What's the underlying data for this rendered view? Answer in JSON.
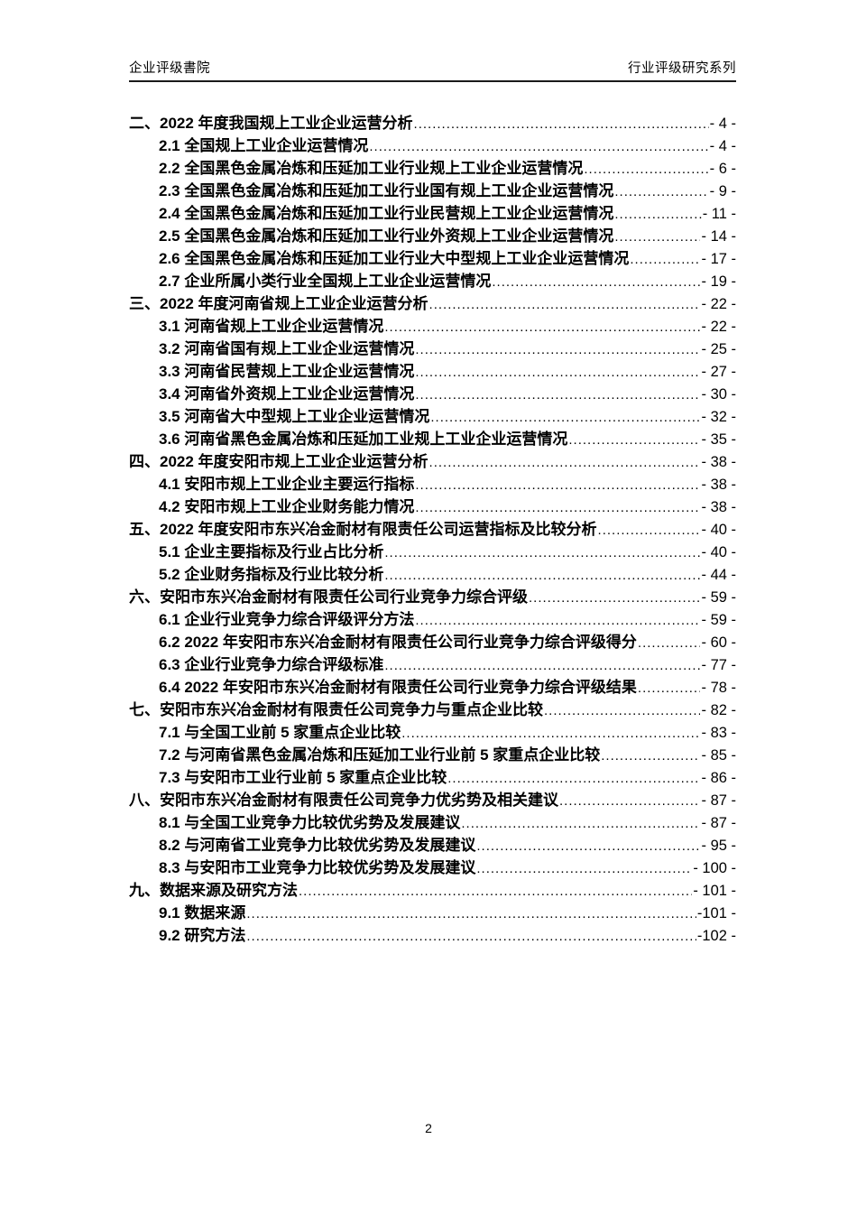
{
  "header": {
    "left": "企业评级書院",
    "right": "行业评级研究系列"
  },
  "toc": {
    "entries": [
      {
        "level": 1,
        "label": "二、2022 年度我国规上工业企业运营分析",
        "page": "- 4 -"
      },
      {
        "level": 2,
        "label": "2.1 全国规上工业企业运营情况",
        "page": "- 4 -"
      },
      {
        "level": 2,
        "label": "2.2 全国黑色金属冶炼和压延加工业行业规上工业企业运营情况",
        "page": "- 6 -"
      },
      {
        "level": 2,
        "label": "2.3 全国黑色金属冶炼和压延加工业行业国有规上工业企业运营情况",
        "page": "- 9 -"
      },
      {
        "level": 2,
        "label": "2.4 全国黑色金属冶炼和压延加工业行业民营规上工业企业运营情况",
        "page": "- 11 -"
      },
      {
        "level": 2,
        "label": "2.5 全国黑色金属冶炼和压延加工业行业外资规上工业企业运营情况",
        "page": "- 14 -"
      },
      {
        "level": 2,
        "label": "2.6 全国黑色金属冶炼和压延加工业行业大中型规上工业企业运营情况",
        "page": "- 17 -"
      },
      {
        "level": 2,
        "label": "2.7 企业所属小类行业全国规上工业企业运营情况",
        "page": "- 19 -"
      },
      {
        "level": 1,
        "label": "三、2022 年度河南省规上工业企业运营分析",
        "page": "- 22 -"
      },
      {
        "level": 2,
        "label": "3.1 河南省规上工业企业运营情况",
        "page": "- 22 -"
      },
      {
        "level": 2,
        "label": "3.2 河南省国有规上工业企业运营情况",
        "page": "- 25 -"
      },
      {
        "level": 2,
        "label": "3.3 河南省民营规上工业企业运营情况",
        "page": "- 27 -"
      },
      {
        "level": 2,
        "label": "3.4 河南省外资规上工业企业运营情况",
        "page": "- 30 -"
      },
      {
        "level": 2,
        "label": "3.5 河南省大中型规上工业企业运营情况",
        "page": "- 32 -"
      },
      {
        "level": 2,
        "label": "3.6 河南省黑色金属冶炼和压延加工业规上工业企业运营情况",
        "page": "- 35 -"
      },
      {
        "level": 1,
        "label": "四、2022 年度安阳市规上工业企业运营分析",
        "page": "- 38 -"
      },
      {
        "level": 2,
        "label": "4.1 安阳市规上工业企业主要运行指标",
        "page": "- 38 -"
      },
      {
        "level": 2,
        "label": "4.2 安阳市规上工业企业财务能力情况",
        "page": "- 38 -"
      },
      {
        "level": 1,
        "label": "五、2022 年度安阳市东兴冶金耐材有限责任公司运营指标及比较分析",
        "page": "- 40 -"
      },
      {
        "level": 2,
        "label": "5.1 企业主要指标及行业占比分析",
        "page": "- 40 -"
      },
      {
        "level": 2,
        "label": "5.2 企业财务指标及行业比较分析",
        "page": "- 44 -"
      },
      {
        "level": 1,
        "label": "六、安阳市东兴冶金耐材有限责任公司行业竞争力综合评级",
        "page": "- 59 -"
      },
      {
        "level": 2,
        "label": "6.1 企业行业竞争力综合评级评分方法",
        "page": "- 59 -"
      },
      {
        "level": 2,
        "label": "6.2 2022 年安阳市东兴冶金耐材有限责任公司行业竞争力综合评级得分",
        "page": "- 60 -"
      },
      {
        "level": 2,
        "label": "6.3 企业行业竞争力综合评级标准",
        "page": "- 77 -"
      },
      {
        "level": 2,
        "label": "6.4 2022 年安阳市东兴冶金耐材有限责任公司行业竞争力综合评级结果",
        "page": "- 78 -"
      },
      {
        "level": 1,
        "label": "七、安阳市东兴冶金耐材有限责任公司竞争力与重点企业比较",
        "page": "- 82 -"
      },
      {
        "level": 2,
        "label": "7.1 与全国工业前 5 家重点企业比较",
        "page": "- 83 -"
      },
      {
        "level": 2,
        "label": "7.2 与河南省黑色金属冶炼和压延加工业行业前 5 家重点企业比较",
        "page": "- 85 -"
      },
      {
        "level": 2,
        "label": "7.3 与安阳市工业行业前 5 家重点企业比较",
        "page": "- 86 -"
      },
      {
        "level": 1,
        "label": "八、安阳市东兴冶金耐材有限责任公司竞争力优劣势及相关建议",
        "page": "- 87 -"
      },
      {
        "level": 2,
        "label": "8.1 与全国工业竞争力比较优劣势及发展建议",
        "page": "- 87 -"
      },
      {
        "level": 2,
        "label": "8.2 与河南省工业竞争力比较优劣势及发展建议",
        "page": "- 95 -"
      },
      {
        "level": 2,
        "label": "8.3 与安阳市工业竞争力比较优劣势及发展建议",
        "page": "- 100 -"
      },
      {
        "level": 1,
        "label": "九、数据来源及研究方法",
        "page": "- 101 -"
      },
      {
        "level": 2,
        "label": "9.1 数据来源",
        "page": "-101 -"
      },
      {
        "level": 2,
        "label": "9.2 研究方法",
        "page": "-102 -"
      }
    ]
  },
  "footer": {
    "page_number": "2"
  }
}
